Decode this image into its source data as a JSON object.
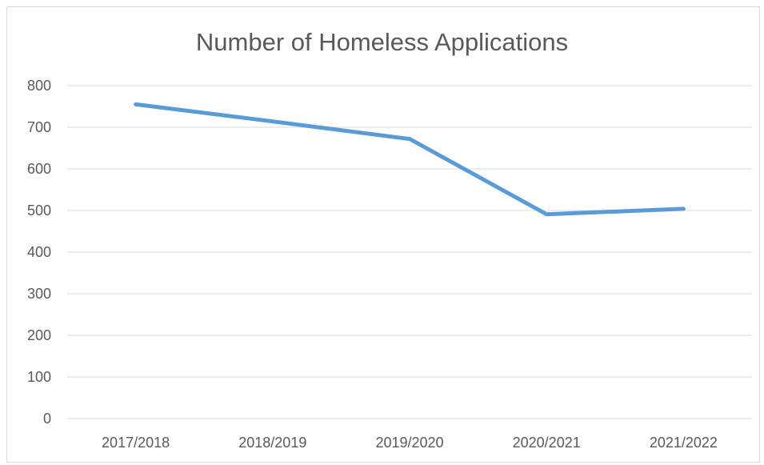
{
  "chart_data": {
    "type": "line",
    "title": "Number of Homeless Applications",
    "categories": [
      "2017/2018",
      "2018/2019",
      "2019/2020",
      "2020/2021",
      "2021/2022"
    ],
    "series": [
      {
        "values": [
          755,
          714,
          672,
          491,
          504
        ],
        "color": "#5b9bd5"
      }
    ],
    "ylim": [
      0,
      800
    ],
    "yticks": [
      0,
      100,
      200,
      300,
      400,
      500,
      600,
      700,
      800
    ],
    "grid": true,
    "legend": "none"
  }
}
